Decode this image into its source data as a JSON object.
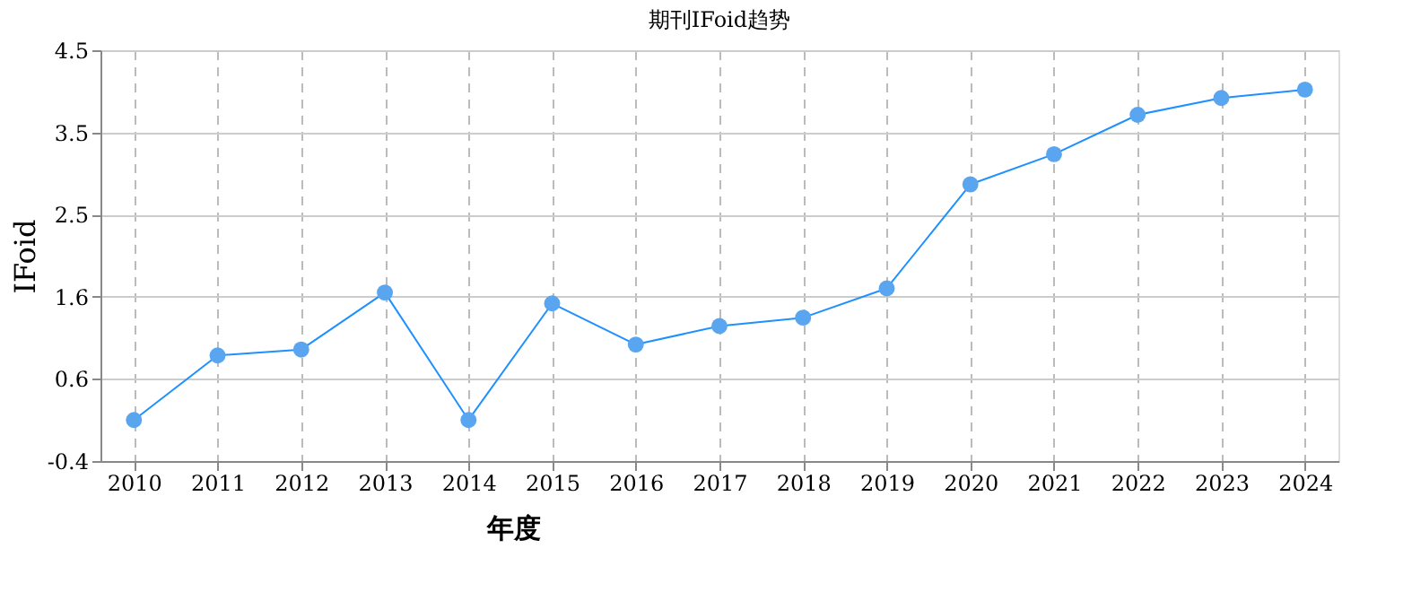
{
  "chart_data": {
    "type": "line",
    "title": "期刊IFoid趋势",
    "xlabel": "年度",
    "ylabel": "IFoid",
    "categories": [
      "2010",
      "2011",
      "2012",
      "2013",
      "2014",
      "2015",
      "2016",
      "2017",
      "2018",
      "2019",
      "2020",
      "2021",
      "2022",
      "2023",
      "2024"
    ],
    "series": [
      {
        "color": "#1e90ff",
        "values": [
          0.09,
          0.86,
          0.93,
          1.61,
          0.09,
          1.48,
          0.99,
          1.21,
          1.31,
          1.66,
          2.9,
          3.26,
          3.73,
          3.93,
          4.03
        ]
      }
    ],
    "ylim": [
      -0.4,
      4.5
    ],
    "yticks": [
      {
        "value": -0.4,
        "label": "-0.4"
      },
      {
        "value": 0.58,
        "label": "0.6"
      },
      {
        "value": 1.56,
        "label": "1.6"
      },
      {
        "value": 2.54,
        "label": "2.5"
      },
      {
        "value": 3.52,
        "label": "3.5"
      },
      {
        "value": 4.5,
        "label": "4.5"
      }
    ],
    "grid": true,
    "marker": "circle",
    "line_style": "solid"
  }
}
